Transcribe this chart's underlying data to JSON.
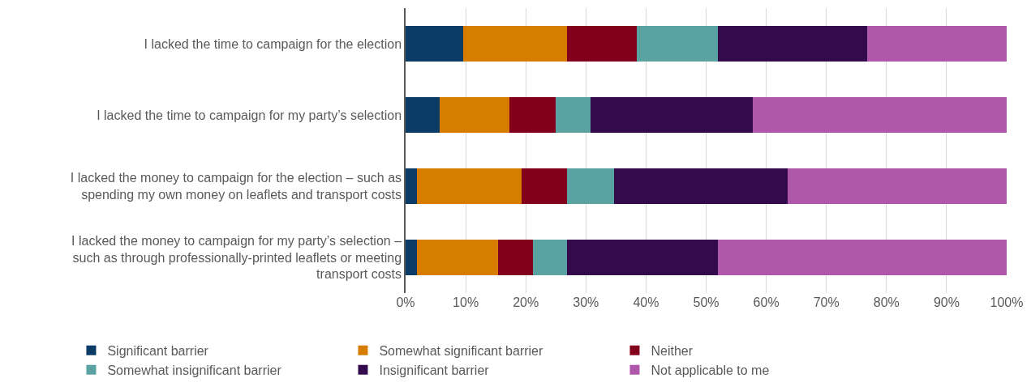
{
  "chart_data": {
    "type": "bar",
    "orientation": "horizontal",
    "stacked": true,
    "grid": "x",
    "legend": "bottom",
    "categories": [
      "I lacked the time to campaign for the election",
      "I lacked the time to campaign for my party’s selection",
      "I lacked the money to campaign for the election – such as spending my own money on leaflets and transport costs",
      "I lacked the money to campaign for my party’s selection – such as through professionally-printed leaflets or meeting transport costs"
    ],
    "series": [
      {
        "name": "Significant barrier",
        "color": "#0b3c65",
        "values": [
          9.6,
          5.7,
          1.9,
          1.9
        ]
      },
      {
        "name": "Somewhat significant barrier",
        "color": "#d67d00",
        "values": [
          17.3,
          11.6,
          17.4,
          13.5
        ]
      },
      {
        "name": "Neither",
        "color": "#83001c",
        "values": [
          11.6,
          7.7,
          7.6,
          5.8
        ]
      },
      {
        "name": "Somewhat insignificant barrier",
        "color": "#5ba3a3",
        "values": [
          13.5,
          5.8,
          7.8,
          5.7
        ]
      },
      {
        "name": "Insignificant barrier",
        "color": "#330b4c",
        "values": [
          24.8,
          26.9,
          28.8,
          25.1
        ]
      },
      {
        "name": "Not applicable to me",
        "color": "#ae57ab",
        "values": [
          23.2,
          42.3,
          36.5,
          48.0
        ]
      }
    ],
    "xlim": [
      0,
      100
    ],
    "xticks": [
      {
        "value": 0,
        "label": "0%"
      },
      {
        "value": 10,
        "label": "10%"
      },
      {
        "value": 20,
        "label": "20%"
      },
      {
        "value": 30,
        "label": "30%"
      },
      {
        "value": 40,
        "label": "40%"
      },
      {
        "value": 50,
        "label": "50%"
      },
      {
        "value": 60,
        "label": "60%"
      },
      {
        "value": 70,
        "label": "70%"
      },
      {
        "value": 80,
        "label": "80%"
      },
      {
        "value": 90,
        "label": "90%"
      },
      {
        "value": 100,
        "label": "100%"
      }
    ]
  }
}
